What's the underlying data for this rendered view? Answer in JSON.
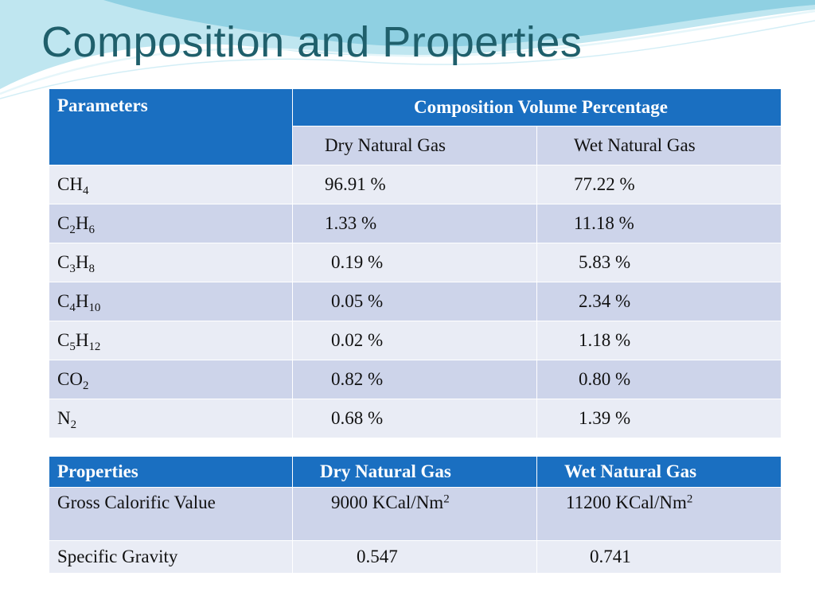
{
  "slide": {
    "title": "Composition and Properties"
  },
  "composition": {
    "header_parameters": "Parameters",
    "header_composition": "Composition Volume Percentage",
    "sub_dry": "Dry Natural Gas",
    "sub_wet": "Wet Natural Gas",
    "rows": [
      {
        "el1": "CH",
        "n1": "4",
        "el2": "",
        "n2": "",
        "dry": "96.91 %",
        "wet": "77.22 %"
      },
      {
        "el1": "C",
        "n1": "2",
        "el2": "H",
        "n2": "6",
        "dry": "1.33 %",
        "wet": "11.18 %"
      },
      {
        "el1": "C",
        "n1": "3",
        "el2": "H",
        "n2": "8",
        "dry": "0.19 %",
        "wet": "5.83 %"
      },
      {
        "el1": "C",
        "n1": "4",
        "el2": "H",
        "n2": "10",
        "dry": "0.05 %",
        "wet": "2.34 %"
      },
      {
        "el1": "C",
        "n1": "5",
        "el2": "H",
        "n2": "12",
        "dry": "0.02 %",
        "wet": "1.18 %"
      },
      {
        "el1": "CO",
        "n1": "2",
        "el2": "",
        "n2": "",
        "dry": "0.82 %",
        "wet": "0.80 %"
      },
      {
        "el1": "N",
        "n1": "2",
        "el2": "",
        "n2": "",
        "dry": "0.68 %",
        "wet": "1.39 %"
      }
    ]
  },
  "properties": {
    "header_properties": "Properties",
    "header_dry": "Dry Natural Gas",
    "header_wet": "Wet Natural Gas",
    "gcv": {
      "label": "Gross Calorific Value",
      "dry": "9000 KCal/Nm",
      "dry_sup": "2",
      "wet": "11200 KCal/Nm",
      "wet_sup": "2"
    },
    "sg": {
      "label": "Specific Gravity",
      "dry": "0.547",
      "wet": "0.741"
    }
  },
  "colors": {
    "title": "#1f5f6b",
    "header_blue": "#1a6fc1",
    "row_light": "#e9ecf5",
    "row_dark": "#cdd4ea",
    "wave_light": "#bfe6f0",
    "wave_mid": "#8fd0e2"
  }
}
